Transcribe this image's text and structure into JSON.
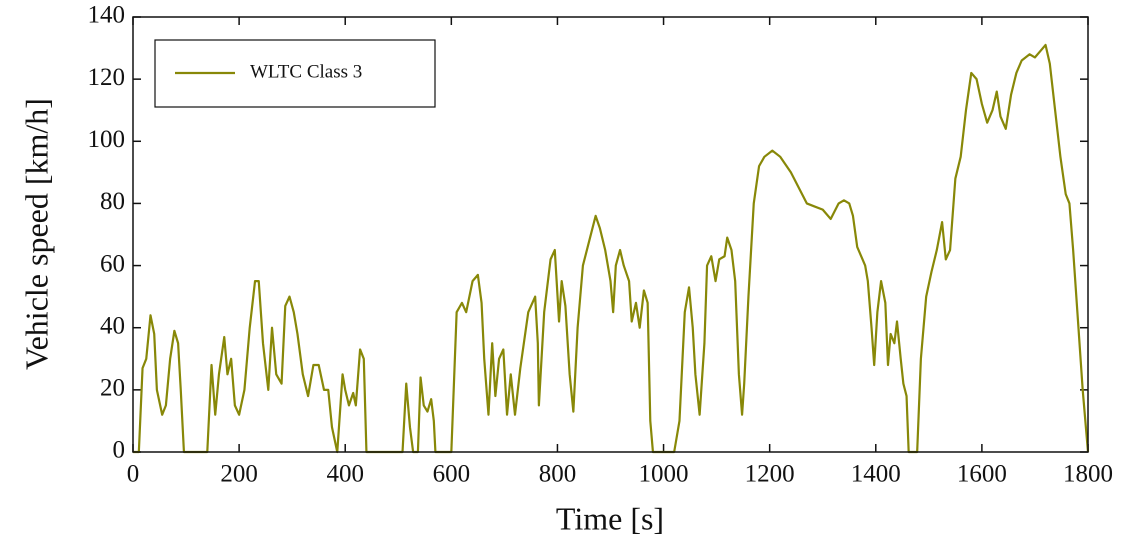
{
  "chart_data": {
    "type": "line",
    "xlabel": "Time [s]",
    "ylabel": "Vehicle speed [km/h]",
    "xlim": [
      0,
      1800
    ],
    "ylim": [
      0,
      140
    ],
    "xticks": [
      0,
      200,
      400,
      600,
      800,
      1000,
      1200,
      1400,
      1600,
      1800
    ],
    "yticks": [
      0,
      20,
      40,
      60,
      80,
      100,
      120,
      140
    ],
    "grid": false,
    "legend": "upper left",
    "x": [
      0,
      11,
      18,
      25,
      33,
      40,
      45,
      55,
      62,
      70,
      78,
      85,
      90,
      96,
      140,
      148,
      155,
      162,
      172,
      178,
      185,
      192,
      200,
      210,
      220,
      230,
      237,
      245,
      255,
      262,
      270,
      280,
      287,
      295,
      303,
      310,
      320,
      330,
      340,
      350,
      360,
      368,
      375,
      385,
      395,
      400,
      407,
      415,
      420,
      428,
      435,
      440,
      445,
      508,
      515,
      522,
      528,
      537,
      542,
      548,
      555,
      562,
      567,
      570,
      600,
      610,
      620,
      628,
      640,
      650,
      657,
      662,
      670,
      677,
      683,
      690,
      698,
      705,
      712,
      720,
      730,
      745,
      758,
      763,
      765,
      775,
      787,
      795,
      803,
      808,
      815,
      823,
      830,
      838,
      848,
      860,
      872,
      880,
      890,
      900,
      905,
      910,
      918,
      925,
      935,
      940,
      948,
      955,
      963,
      970,
      975,
      980,
      1020,
      1030,
      1040,
      1048,
      1055,
      1060,
      1068,
      1077,
      1082,
      1090,
      1098,
      1105,
      1115,
      1120,
      1128,
      1135,
      1142,
      1148,
      1152,
      1160,
      1170,
      1180,
      1190,
      1205,
      1220,
      1240,
      1255,
      1270,
      1285,
      1300,
      1315,
      1330,
      1340,
      1350,
      1357,
      1365,
      1375,
      1380,
      1385,
      1392,
      1397,
      1403,
      1410,
      1418,
      1423,
      1428,
      1435,
      1440,
      1447,
      1452,
      1458,
      1462,
      1478,
      1485,
      1495,
      1505,
      1515,
      1525,
      1532,
      1540,
      1550,
      1560,
      1570,
      1580,
      1590,
      1600,
      1610,
      1620,
      1628,
      1635,
      1645,
      1655,
      1665,
      1675,
      1690,
      1700,
      1710,
      1720,
      1728,
      1738,
      1748,
      1758,
      1765,
      1772,
      1780,
      1790,
      1800
    ],
    "series": [
      {
        "name": "WLTC Class 3",
        "color": "#888808",
        "values": [
          0,
          0,
          27,
          30,
          44,
          38,
          20,
          12,
          15,
          30,
          39,
          35,
          20,
          0,
          0,
          28,
          12,
          25,
          37,
          25,
          30,
          15,
          12,
          20,
          40,
          55,
          55,
          35,
          20,
          40,
          25,
          22,
          47,
          50,
          45,
          38,
          25,
          18,
          28,
          28,
          20,
          20,
          8,
          0,
          25,
          20,
          15,
          19,
          15,
          33,
          30,
          0,
          0,
          0,
          22,
          8,
          0,
          0,
          24,
          15,
          13,
          17,
          10,
          0,
          0,
          45,
          48,
          45,
          55,
          57,
          48,
          30,
          12,
          35,
          18,
          30,
          33,
          12,
          25,
          12,
          27,
          45,
          50,
          35,
          15,
          45,
          62,
          65,
          42,
          55,
          47,
          25,
          13,
          40,
          60,
          68,
          76,
          72,
          65,
          55,
          45,
          60,
          65,
          60,
          55,
          42,
          48,
          40,
          52,
          48,
          10,
          0,
          0,
          10,
          45,
          53,
          40,
          25,
          12,
          35,
          60,
          63,
          55,
          62,
          63,
          69,
          65,
          55,
          25,
          12,
          22,
          50,
          80,
          92,
          95,
          97,
          95,
          90,
          85,
          80,
          79,
          78,
          75,
          80,
          81,
          80,
          76,
          66,
          62,
          60,
          55,
          40,
          28,
          45,
          55,
          48,
          28,
          38,
          35,
          42,
          30,
          22,
          18,
          0,
          0,
          30,
          50,
          58,
          65,
          74,
          62,
          65,
          88,
          95,
          110,
          122,
          120,
          112,
          106,
          110,
          116,
          108,
          104,
          115,
          122,
          126,
          128,
          127,
          129,
          131,
          125,
          110,
          95,
          83,
          80,
          65,
          45,
          20,
          0
        ]
      }
    ]
  }
}
